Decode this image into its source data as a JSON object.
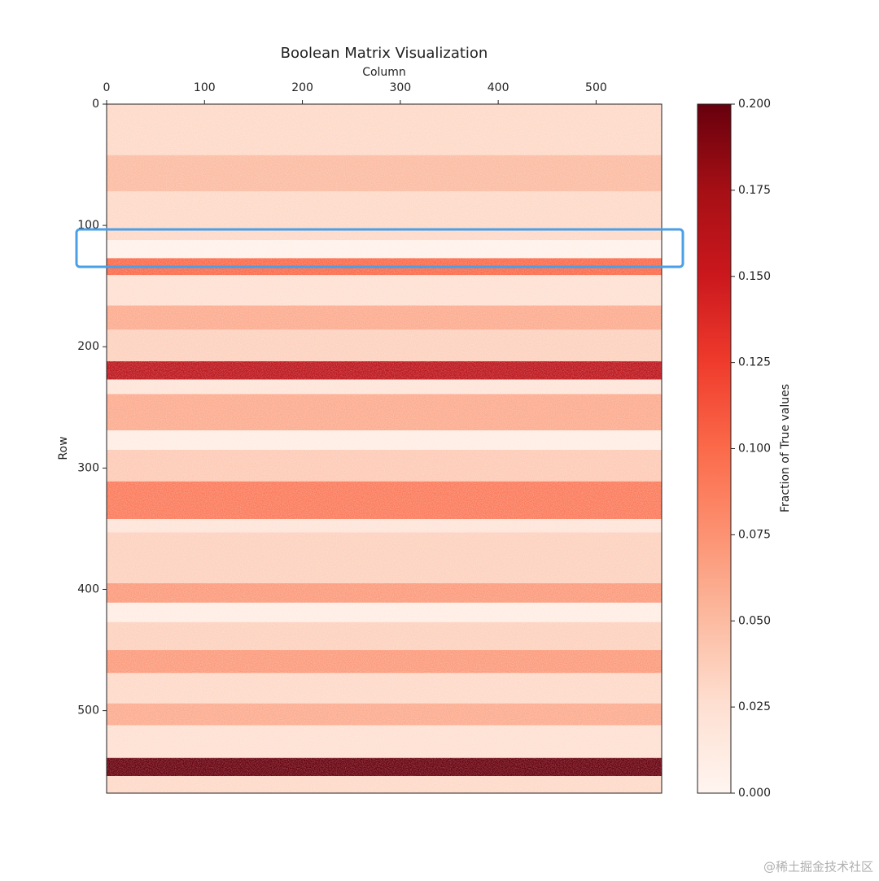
{
  "chart_data": {
    "type": "heatmap",
    "title": "Boolean Matrix Visualization",
    "x_label": "Column",
    "y_label": "Row",
    "colorbar_label": "Fraction of True values",
    "xlim": [
      0,
      567
    ],
    "xticks": [
      0,
      100,
      200,
      300,
      400,
      500
    ],
    "ylim": [
      0,
      568
    ],
    "yticks": [
      0,
      100,
      200,
      300,
      400,
      500
    ],
    "row_edges": [
      0,
      42,
      72,
      102,
      112,
      127,
      141,
      166,
      186,
      212,
      227,
      239,
      269,
      285,
      311,
      342,
      353,
      395,
      411,
      427,
      450,
      469,
      494,
      512,
      539,
      554,
      568
    ],
    "values": [
      0.03,
      0.05,
      0.03,
      0.03,
      0.005,
      0.1,
      0.025,
      0.06,
      0.035,
      0.16,
      0.02,
      0.06,
      0.01,
      0.04,
      0.09,
      0.02,
      0.035,
      0.07,
      0.01,
      0.035,
      0.07,
      0.03,
      0.06,
      0.025,
      0.2,
      0.03
    ],
    "clim": [
      0,
      0.2
    ],
    "colormap": [
      "#fff5f0",
      "#fee0d2",
      "#fcbba1",
      "#fc9272",
      "#fb6a4a",
      "#ef3b2c",
      "#cb181d",
      "#a50f15",
      "#67000d"
    ],
    "cticks": [
      {
        "value": 0,
        "label": "0.000"
      },
      {
        "value": 0.025,
        "label": "0.025"
      },
      {
        "value": 0.05,
        "label": "0.050"
      },
      {
        "value": 0.075,
        "label": "0.075"
      },
      {
        "value": 0.1,
        "label": "0.100"
      },
      {
        "value": 0.125,
        "label": "0.125"
      },
      {
        "value": 0.15,
        "label": "0.150"
      },
      {
        "value": 0.175,
        "label": "0.175"
      },
      {
        "value": 0.2,
        "label": "0.200"
      }
    ]
  },
  "watermark": "@稀土掘金技术社区"
}
